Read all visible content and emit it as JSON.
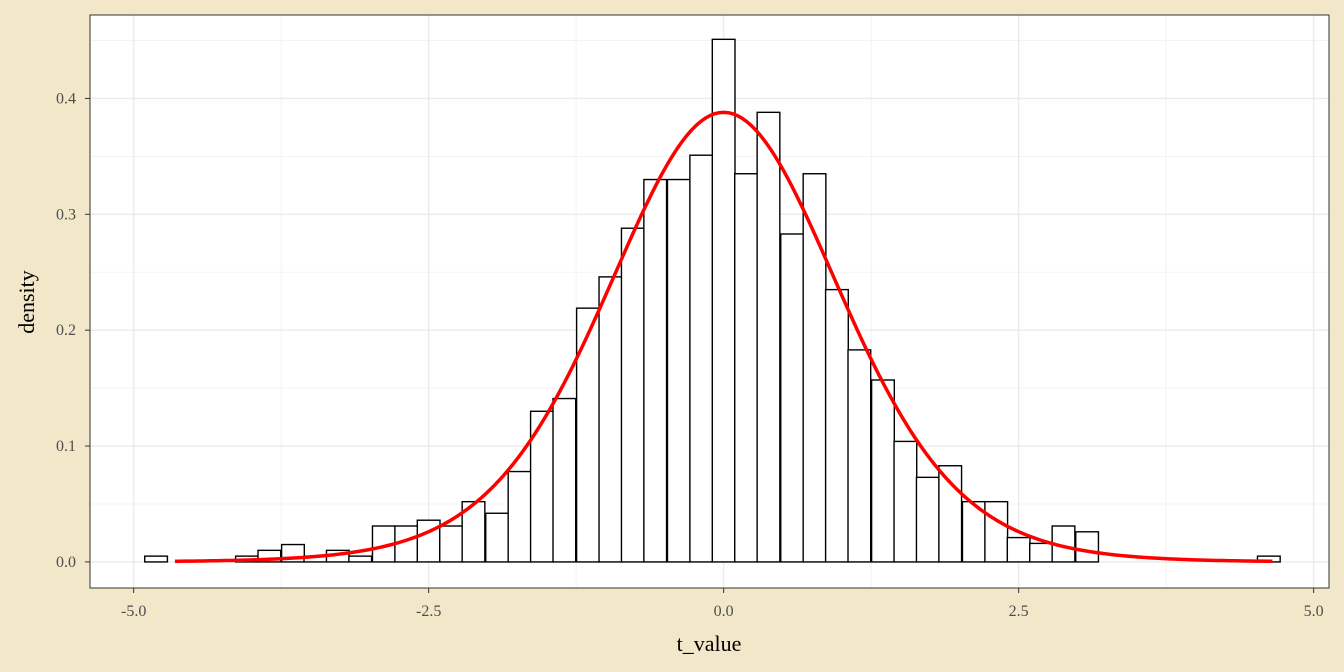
{
  "chart_data": {
    "type": "bar",
    "subtype": "histogram-with-density-curve",
    "title": "",
    "xlabel": "t_value",
    "ylabel": "density",
    "xlim": [
      -5.0,
      5.0
    ],
    "ylim": [
      0.0,
      0.45
    ],
    "x_ticks": [
      -5.0,
      -2.5,
      0.0,
      2.5,
      5.0
    ],
    "x_tick_labels": [
      "-5.0",
      "-2.5",
      "0.0",
      "2.5",
      "5.0"
    ],
    "y_ticks": [
      0.0,
      0.1,
      0.2,
      0.3,
      0.4
    ],
    "y_tick_labels": [
      "0.0",
      "0.1",
      "0.2",
      "0.3",
      "0.4"
    ],
    "grid": true,
    "legend": "none",
    "bin_width": 0.1923,
    "bins": [
      {
        "x": -4.81,
        "y": 0.005
      },
      {
        "x": -4.62,
        "y": 0.0
      },
      {
        "x": -4.42,
        "y": 0.0
      },
      {
        "x": -4.23,
        "y": 0.0
      },
      {
        "x": -4.04,
        "y": 0.005
      },
      {
        "x": -3.85,
        "y": 0.01
      },
      {
        "x": -3.65,
        "y": 0.015
      },
      {
        "x": -3.46,
        "y": 0.005
      },
      {
        "x": -3.27,
        "y": 0.01
      },
      {
        "x": -3.08,
        "y": 0.005
      },
      {
        "x": -2.88,
        "y": 0.031
      },
      {
        "x": -2.69,
        "y": 0.031
      },
      {
        "x": -2.5,
        "y": 0.036
      },
      {
        "x": -2.31,
        "y": 0.031
      },
      {
        "x": -2.12,
        "y": 0.052
      },
      {
        "x": -1.92,
        "y": 0.042
      },
      {
        "x": -1.73,
        "y": 0.078
      },
      {
        "x": -1.54,
        "y": 0.13
      },
      {
        "x": -1.35,
        "y": 0.141
      },
      {
        "x": -1.15,
        "y": 0.219
      },
      {
        "x": -0.96,
        "y": 0.246
      },
      {
        "x": -0.77,
        "y": 0.288
      },
      {
        "x": -0.58,
        "y": 0.33
      },
      {
        "x": -0.38,
        "y": 0.33
      },
      {
        "x": -0.19,
        "y": 0.351
      },
      {
        "x": 0.0,
        "y": 0.451
      },
      {
        "x": 0.19,
        "y": 0.335
      },
      {
        "x": 0.38,
        "y": 0.388
      },
      {
        "x": 0.58,
        "y": 0.283
      },
      {
        "x": 0.77,
        "y": 0.335
      },
      {
        "x": 0.96,
        "y": 0.235
      },
      {
        "x": 1.15,
        "y": 0.183
      },
      {
        "x": 1.35,
        "y": 0.157
      },
      {
        "x": 1.54,
        "y": 0.104
      },
      {
        "x": 1.73,
        "y": 0.073
      },
      {
        "x": 1.92,
        "y": 0.083
      },
      {
        "x": 2.12,
        "y": 0.052
      },
      {
        "x": 2.31,
        "y": 0.052
      },
      {
        "x": 2.5,
        "y": 0.021
      },
      {
        "x": 2.69,
        "y": 0.016
      },
      {
        "x": 2.88,
        "y": 0.031
      },
      {
        "x": 3.08,
        "y": 0.026
      },
      {
        "x": 3.27,
        "y": 0.0
      },
      {
        "x": 3.46,
        "y": 0.0
      },
      {
        "x": 3.65,
        "y": 0.0
      },
      {
        "x": 3.85,
        "y": 0.0
      },
      {
        "x": 4.04,
        "y": 0.0
      },
      {
        "x": 4.23,
        "y": 0.0
      },
      {
        "x": 4.42,
        "y": 0.0
      },
      {
        "x": 4.62,
        "y": 0.005
      }
    ],
    "density_curve": {
      "distribution": "student-t",
      "df": 11,
      "x_range": [
        -4.65,
        4.65
      ],
      "peak_y": 0.388
    },
    "colors": {
      "page_background": "#f2e8c9",
      "panel_background": "#ffffff",
      "grid": "#ebebeb",
      "bar_fill": "#ffffff",
      "bar_outline": "#000000",
      "curve": "#ff0000",
      "panel_border": "#333333"
    }
  }
}
